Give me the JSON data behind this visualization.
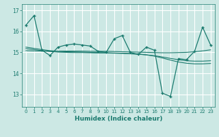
{
  "title": "",
  "xlabel": "Humidex (Indice chaleur)",
  "bg_color": "#cce8e4",
  "grid_color": "#ffffff",
  "line_color": "#1a7a6e",
  "xlim": [
    -0.5,
    23.5
  ],
  "ylim": [
    12.4,
    17.3
  ],
  "yticks": [
    13,
    14,
    15,
    16,
    17
  ],
  "xticks": [
    0,
    1,
    2,
    3,
    4,
    5,
    6,
    7,
    8,
    9,
    10,
    11,
    12,
    13,
    14,
    15,
    16,
    17,
    18,
    19,
    20,
    21,
    22,
    23
  ],
  "main_line": [
    16.3,
    16.75,
    15.1,
    14.85,
    15.25,
    15.35,
    15.4,
    15.35,
    15.3,
    15.05,
    15.0,
    15.65,
    15.8,
    15.0,
    14.9,
    15.25,
    15.1,
    13.05,
    12.9,
    14.7,
    14.65,
    15.05,
    16.2,
    15.35
  ],
  "smooth_line1": [
    15.08,
    15.07,
    15.06,
    15.06,
    15.06,
    15.06,
    15.06,
    15.06,
    15.05,
    15.05,
    15.05,
    15.04,
    15.03,
    15.02,
    15.01,
    15.0,
    14.99,
    14.98,
    14.98,
    14.99,
    15.0,
    15.03,
    15.07,
    15.12
  ],
  "smooth_line2": [
    15.18,
    15.13,
    15.08,
    15.04,
    15.01,
    15.0,
    14.99,
    14.99,
    14.98,
    14.97,
    14.97,
    14.96,
    14.95,
    14.93,
    14.91,
    14.88,
    14.84,
    14.78,
    14.71,
    14.65,
    14.6,
    14.58,
    14.58,
    14.6
  ],
  "smooth_line3": [
    15.25,
    15.19,
    15.13,
    15.08,
    15.05,
    15.03,
    15.02,
    15.01,
    15.0,
    14.99,
    14.98,
    14.97,
    14.96,
    14.94,
    14.92,
    14.88,
    14.82,
    14.73,
    14.63,
    14.54,
    14.48,
    14.45,
    14.45,
    14.47
  ]
}
